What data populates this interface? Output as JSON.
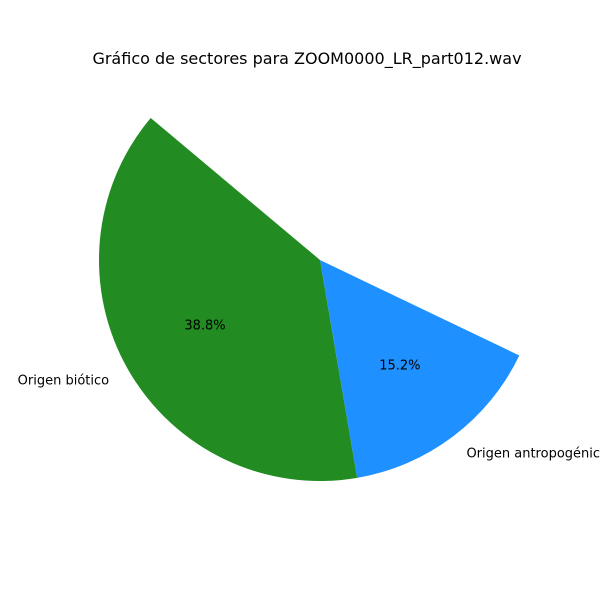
{
  "chart_data": {
    "type": "pie",
    "title": "Gráfico de sectores para ZOOM0000_LR_part012.wav",
    "slices": [
      {
        "label": "Origen biótico",
        "value": 38.8,
        "display": "38.8%",
        "color": "#228b22"
      },
      {
        "label": "Origen antropogénico",
        "value": 15.2,
        "display": "15.2%",
        "color": "#1e90ff"
      }
    ],
    "total_percent": 54.0,
    "start_angle_deg": 140,
    "direction": "counterclockwise"
  }
}
